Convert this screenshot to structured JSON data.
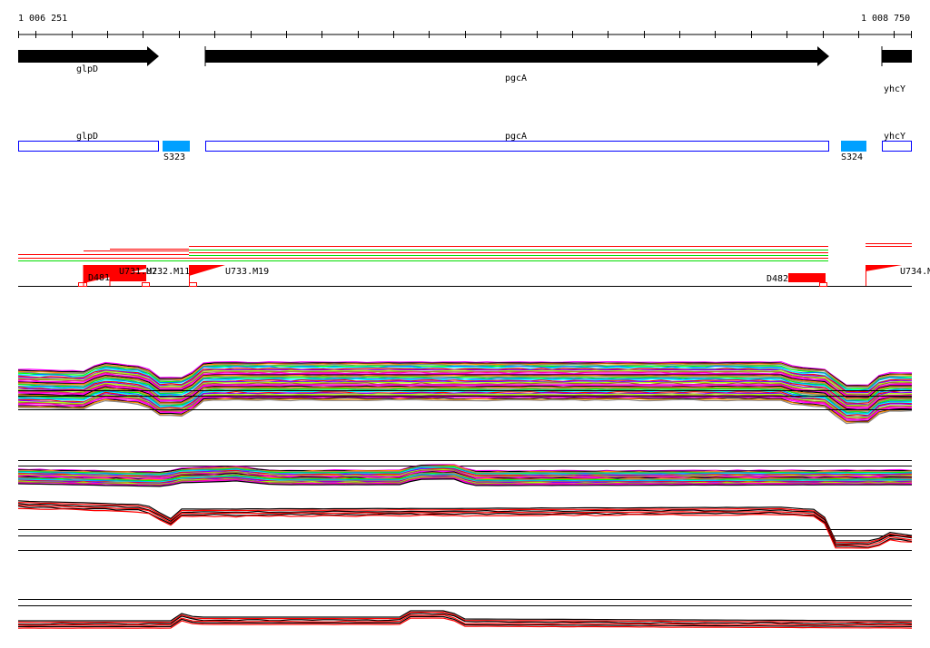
{
  "ruler": {
    "start_label": "1 006 251",
    "end_label": "1 008 750",
    "start": 1006251,
    "end": 1008750,
    "tick_interval_bp": 100
  },
  "genes": [
    {
      "name": "glpD",
      "start": 1006251,
      "end": 1006645,
      "strand": "+"
    },
    {
      "name": "pgcA",
      "start": 1006780,
      "end": 1008525,
      "strand": "+"
    },
    {
      "name": "yhcY",
      "start": 1008670,
      "end": 1008750,
      "strand": "+"
    }
  ],
  "annotations": [
    {
      "name": "glpD",
      "type": "gene-box"
    },
    {
      "name": "S323",
      "type": "segment"
    },
    {
      "name": "pgcA",
      "type": "gene-box"
    },
    {
      "name": "S324",
      "type": "segment"
    },
    {
      "name": "yhcY",
      "type": "gene-box"
    }
  ],
  "features": [
    {
      "label": "D481"
    },
    {
      "label": "U731.M2"
    },
    {
      "label": "U732.M11"
    },
    {
      "label": "U733.M19"
    },
    {
      "label": "D482"
    },
    {
      "label": "U734.M"
    }
  ],
  "colors": {
    "gene": "#000000",
    "box": "#0000ff",
    "segment": "#00a0ff",
    "feature": "#ff0000",
    "green": "#00dd00"
  }
}
